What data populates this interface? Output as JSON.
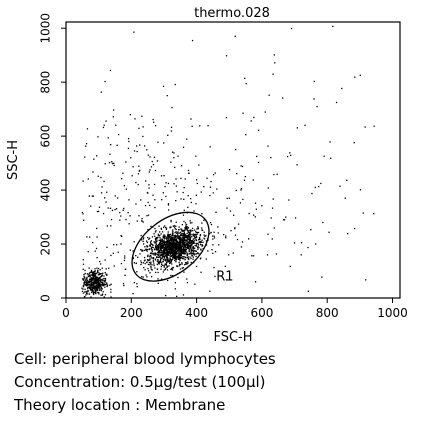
{
  "chart_data": {
    "type": "scatter",
    "title": "thermo.028",
    "xlabel": "FSC-H",
    "ylabel": "SSC-H",
    "xlim": [
      0,
      1023
    ],
    "ylim": [
      0,
      1023
    ],
    "x_ticks": [
      "0",
      "200",
      "400",
      "600",
      "800",
      "1000"
    ],
    "y_ticks": [
      "0",
      "200",
      "400",
      "600",
      "800",
      "1000"
    ],
    "grid": false,
    "gate": {
      "label": "R1",
      "shape": "ellipse",
      "center": [
        320,
        190
      ],
      "rx": 135,
      "ry": 82,
      "rotation_deg": -38
    },
    "populations": [
      {
        "center": [
          330,
          190
        ],
        "spread": [
          45,
          30
        ],
        "count": 1400,
        "rotation_deg": 30,
        "note": "main lymphocyte cluster"
      },
      {
        "center": [
          85,
          60
        ],
        "spread": [
          18,
          25
        ],
        "count": 420,
        "note": "debris near origin"
      },
      {
        "center": [
          220,
          300
        ],
        "spread": [
          170,
          220
        ],
        "count": 450,
        "note": "scattered events"
      },
      {
        "center": [
          600,
          500
        ],
        "spread": [
          200,
          260
        ],
        "count": 120,
        "note": "sparse high events"
      }
    ]
  },
  "caption": {
    "line1": "Cell: peripheral blood lymphocytes",
    "line2": "Concentration: 0.5µg/test (100µl)",
    "line3": "Theory location : Membrane"
  }
}
